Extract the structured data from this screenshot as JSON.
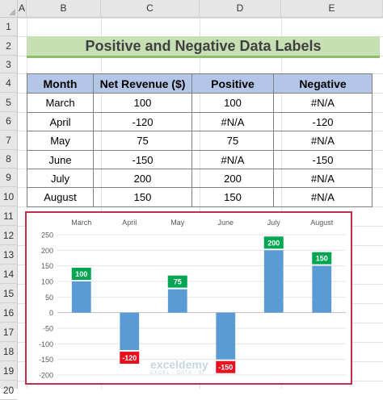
{
  "columns": [
    "A",
    "B",
    "C",
    "D",
    "E"
  ],
  "rows": [
    "1",
    "2",
    "3",
    "4",
    "5",
    "6",
    "7",
    "8",
    "9",
    "10",
    "11",
    "12",
    "13",
    "14",
    "15",
    "16",
    "17",
    "18",
    "19",
    "20"
  ],
  "title": "Positive and Negative Data Labels",
  "table": {
    "headers": [
      "Month",
      "Net Revenue ($)",
      "Positive",
      "Negative"
    ],
    "rows": [
      [
        "March",
        "100",
        "100",
        "#N/A"
      ],
      [
        "April",
        "-120",
        "#N/A",
        "-120"
      ],
      [
        "May",
        "75",
        "75",
        "#N/A"
      ],
      [
        "June",
        "-150",
        "#N/A",
        "-150"
      ],
      [
        "July",
        "200",
        "200",
        "#N/A"
      ],
      [
        "August",
        "150",
        "150",
        "#N/A"
      ]
    ]
  },
  "chart_data": {
    "type": "bar",
    "categories": [
      "March",
      "April",
      "May",
      "June",
      "July",
      "August"
    ],
    "values": [
      100,
      -120,
      75,
      -150,
      200,
      150
    ],
    "labels": [
      "100",
      "-120",
      "75",
      "-150",
      "200",
      "150"
    ],
    "ylim": [
      -200,
      250
    ],
    "yticks": [
      "250",
      "200",
      "150",
      "100",
      "50",
      "0",
      "-50",
      "-100",
      "-150",
      "-200"
    ],
    "grid": true,
    "colors": {
      "bar": "#5b9bd5",
      "positive_label": "#00a651",
      "negative_label": "#e8101f"
    }
  },
  "watermark": {
    "name": "exceldemy",
    "tagline": "EXCEL · DATA · BI"
  }
}
